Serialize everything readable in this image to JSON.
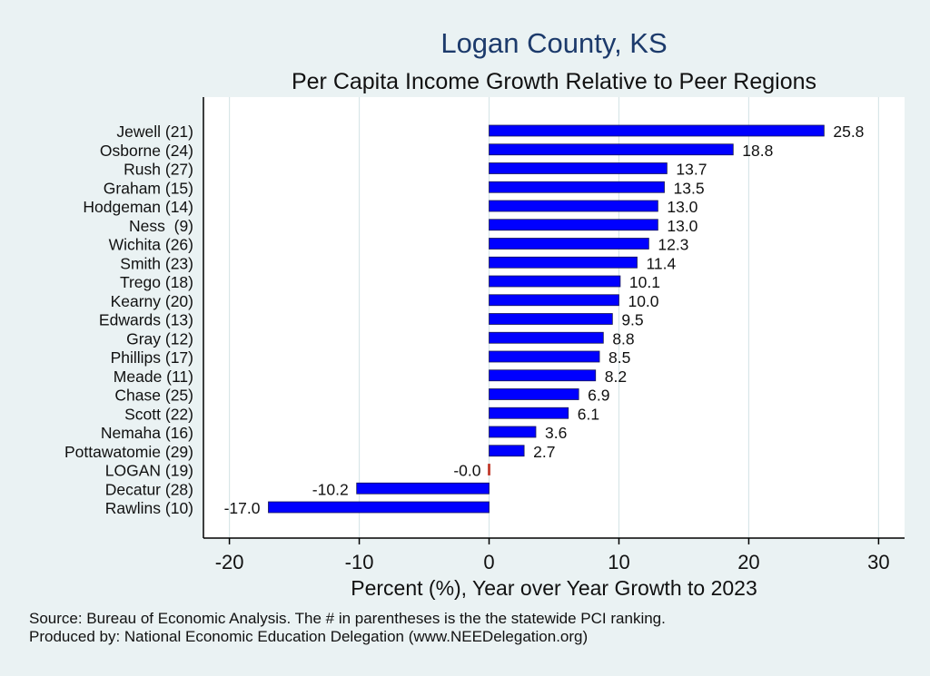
{
  "chart_data": {
    "type": "bar",
    "orientation": "horizontal",
    "title": "Logan County, KS",
    "subtitle": "Per Capita Income Growth Relative to Peer Regions",
    "xlabel": "Percent (%), Year over Year Growth to 2023",
    "ylabel": "",
    "xlim": [
      -22,
      32
    ],
    "xticks": [
      -20,
      -10,
      0,
      10,
      20,
      30
    ],
    "grid": true,
    "categories": [
      "Jewell (21)",
      "Osborne (24)",
      "Rush (27)",
      "Graham (15)",
      "Hodgeman (14)",
      "Ness  (9)",
      "Wichita (26)",
      "Smith (23)",
      "Trego (18)",
      "Kearny (20)",
      "Edwards (13)",
      "Gray (12)",
      "Phillips (17)",
      "Meade (11)",
      "Chase (25)",
      "Scott (22)",
      "Nemaha (16)",
      "Pottawatomie (29)",
      "LOGAN (19)",
      "Decatur (28)",
      "Rawlins (10)"
    ],
    "values": [
      25.8,
      18.8,
      13.7,
      13.5,
      13.0,
      13.0,
      12.3,
      11.4,
      10.1,
      10.0,
      9.5,
      8.8,
      8.5,
      8.2,
      6.9,
      6.1,
      3.6,
      2.7,
      -0.0,
      -10.2,
      -17.0
    ],
    "value_labels": [
      "25.8",
      "18.8",
      "13.7",
      "13.5",
      "13.0",
      "13.0",
      "12.3",
      "11.4",
      "10.1",
      "10.0",
      "9.5",
      "8.8",
      "8.5",
      "8.2",
      "6.9",
      "6.1",
      "3.6",
      "2.7",
      "-0.0",
      "-10.2",
      "-17.0"
    ],
    "highlight_category": "LOGAN (19)",
    "colors": {
      "bar": "#0000ff",
      "bar_edge": "#1a1a55",
      "highlight": "#c0392b",
      "grid": "#d8e6e8",
      "plot_bg": "#ffffff",
      "page_bg": "#eaf2f3"
    }
  },
  "notes": {
    "source": "Source: Bureau of Economic Analysis. The # in parentheses is the the statewide PCI ranking.",
    "producer": "Produced by: National Economic Education Delegation (www.NEEDelegation.org)"
  }
}
